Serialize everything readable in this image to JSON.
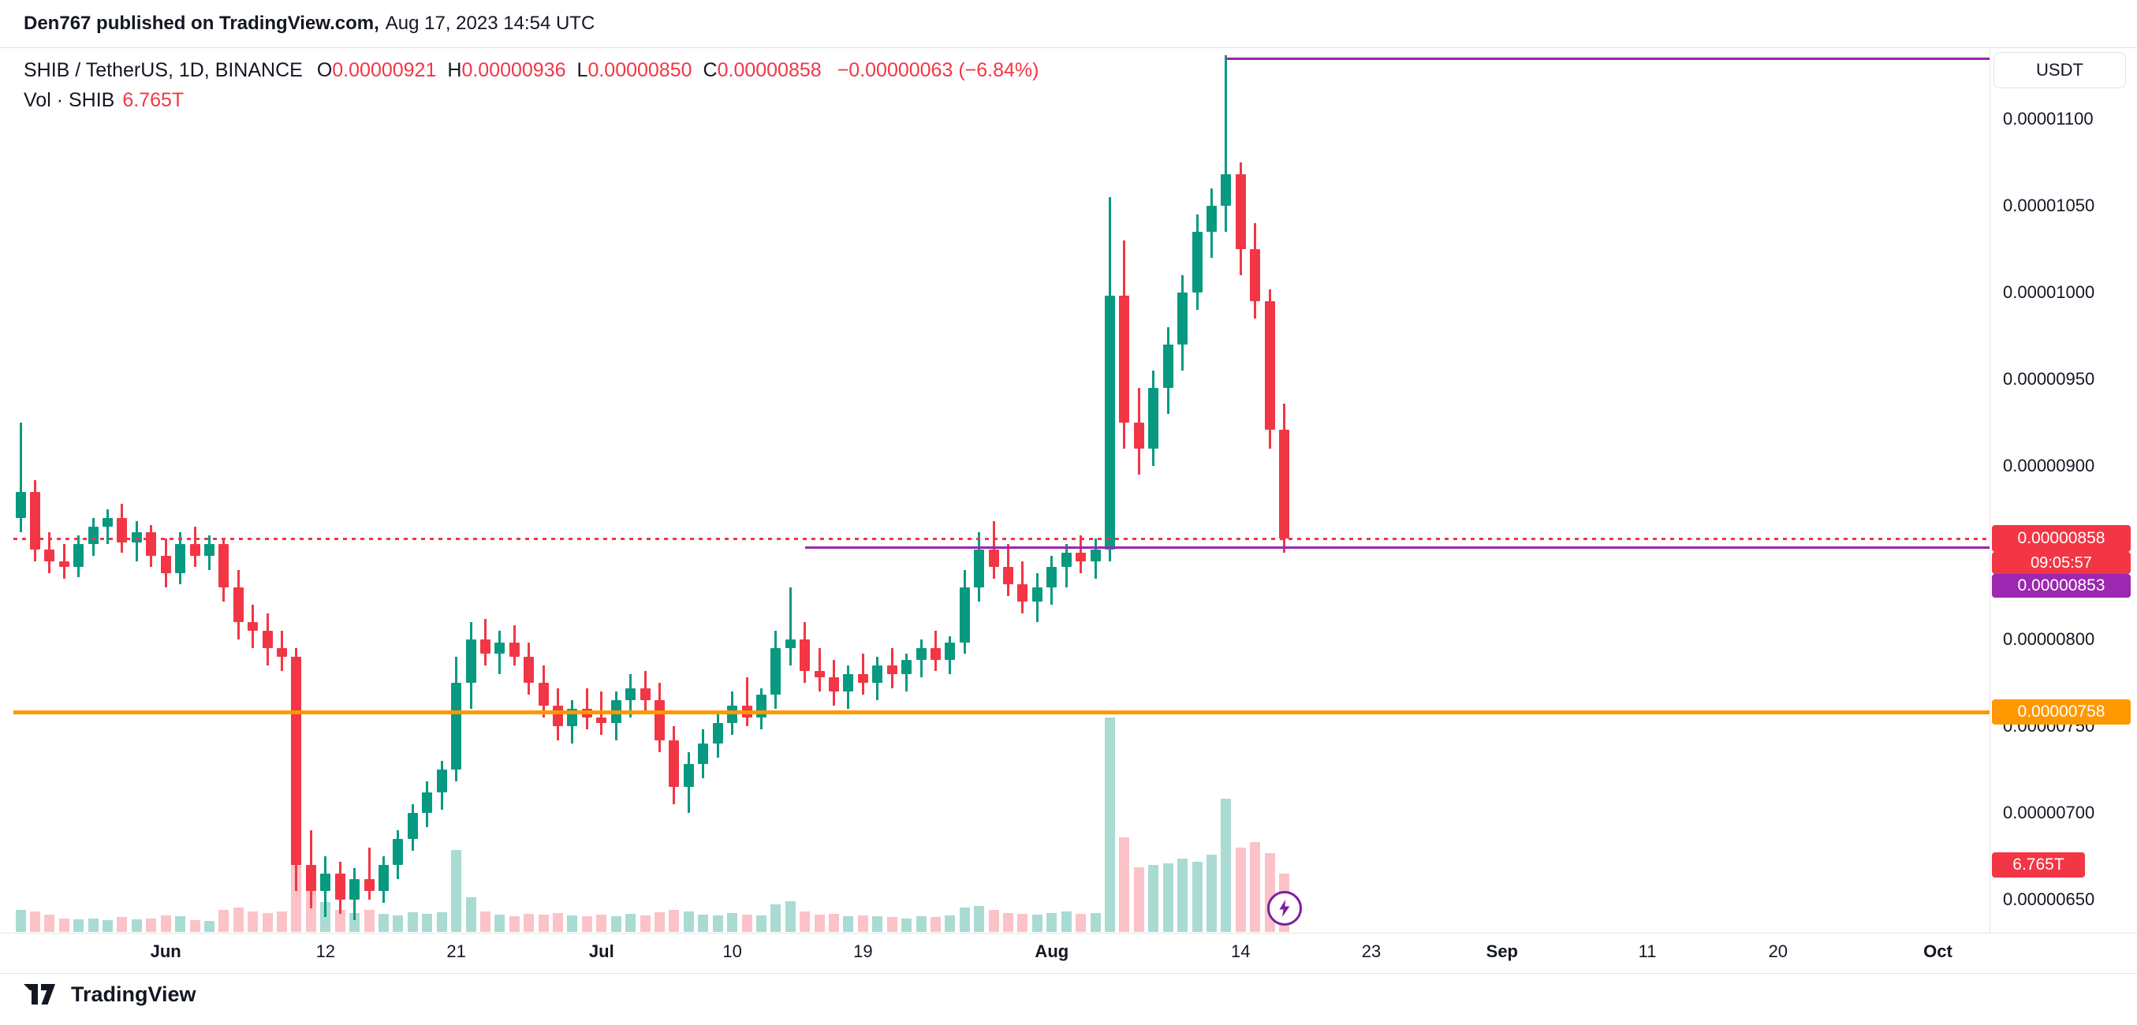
{
  "header": {
    "publisher": "Den767 published on TradingView.com,",
    "date": "Aug 17, 2023 14:54 UTC"
  },
  "legend": {
    "symbol": "SHIB / TetherUS, 1D, BINANCE",
    "ohlc": [
      {
        "k": "O",
        "v": "0.00000921"
      },
      {
        "k": "H",
        "v": "0.00000936"
      },
      {
        "k": "L",
        "v": "0.00000850"
      },
      {
        "k": "C",
        "v": "0.00000858"
      }
    ],
    "change": "−0.00000063 (−6.84%)",
    "volume_label": "Vol · SHIB",
    "volume_value": "6.765T"
  },
  "price_axis": {
    "currency": "USDT",
    "labels": [
      {
        "text": "0.00001100",
        "price_1e8": 11.0
      },
      {
        "text": "0.00001050",
        "price_1e8": 10.5
      },
      {
        "text": "0.00001000",
        "price_1e8": 10.0
      },
      {
        "text": "0.00000950",
        "price_1e8": 9.5
      },
      {
        "text": "0.00000900",
        "price_1e8": 9.0
      },
      {
        "text": "0.00000800",
        "price_1e8": 8.0
      },
      {
        "text": "0.00000750",
        "price_1e8": 7.5
      },
      {
        "text": "0.00000700",
        "price_1e8": 7.0
      },
      {
        "text": "0.00000650",
        "price_1e8": 6.5
      }
    ],
    "badges": {
      "last_price": {
        "text": "0.00000858",
        "bg": "#f23645"
      },
      "countdown": {
        "text": "09:05:57",
        "bg": "#f23645"
      },
      "purple_level": {
        "text": "0.00000853",
        "bg": "#9c27b0"
      },
      "orange_level": {
        "text": "0.00000758",
        "bg": "#ff9800"
      },
      "volume": {
        "text": "6.765T",
        "bg": "#f23645"
      }
    }
  },
  "time_axis": {
    "labels": [
      {
        "label": "Jun",
        "index": 10,
        "month": true
      },
      {
        "label": "12",
        "index": 21,
        "month": false
      },
      {
        "label": "21",
        "index": 30,
        "month": false
      },
      {
        "label": "Jul",
        "index": 40,
        "month": true
      },
      {
        "label": "10",
        "index": 49,
        "month": false
      },
      {
        "label": "19",
        "index": 58,
        "month": false
      },
      {
        "label": "Aug",
        "index": 71,
        "month": true
      },
      {
        "label": "14",
        "index": 84,
        "month": false
      },
      {
        "label": "23",
        "index": 93,
        "month": false
      },
      {
        "label": "Sep",
        "index": 102,
        "month": true
      },
      {
        "label": "11",
        "index": 112,
        "month": false
      },
      {
        "label": "20",
        "index": 121,
        "month": false
      },
      {
        "label": "Oct",
        "index": 132,
        "month": true
      }
    ]
  },
  "footer": {
    "brand": "TradingView"
  },
  "chart_data": {
    "type": "candlestick",
    "title": "SHIB / TetherUS, 1D, BINANCE",
    "price_unit": "USDT, values ×10⁻⁸",
    "volume_unit": "T (trillions SHIB)",
    "y_axis_range_1e8": [
      6.3,
      11.45
    ],
    "grid": false,
    "legend_position": "top-left",
    "last_bar": {
      "open": "0.00000921",
      "high": "0.00000936",
      "low": "0.00000850",
      "close": "0.00000858",
      "change": "−0.00000063 (−6.84%)",
      "volume": "6.765T"
    },
    "colors": {
      "up": "#089981",
      "down": "#f23645",
      "vol_up": "rgba(8,153,129,0.35)",
      "vol_down": "rgba(242,54,69,0.30)"
    },
    "candles_format": [
      "date",
      "open_1e8",
      "high_1e8",
      "low_1e8",
      "close_1e8",
      "volume_T"
    ],
    "candles": [
      [
        "May 22",
        8.7,
        9.25,
        8.62,
        8.85,
        2.6
      ],
      [
        "May 23",
        8.85,
        8.92,
        8.45,
        8.52,
        2.4
      ],
      [
        "May 24",
        8.52,
        8.62,
        8.38,
        8.45,
        2.0
      ],
      [
        "May 25",
        8.45,
        8.55,
        8.35,
        8.42,
        1.6
      ],
      [
        "May 26",
        8.42,
        8.6,
        8.36,
        8.55,
        1.5
      ],
      [
        "May 27",
        8.55,
        8.7,
        8.48,
        8.65,
        1.6
      ],
      [
        "May 28",
        8.65,
        8.75,
        8.55,
        8.7,
        1.4
      ],
      [
        "May 29",
        8.7,
        8.78,
        8.5,
        8.56,
        1.7
      ],
      [
        "May 30",
        8.56,
        8.68,
        8.45,
        8.62,
        1.5
      ],
      [
        "May 31",
        8.62,
        8.66,
        8.42,
        8.48,
        1.6
      ],
      [
        "Jun 1",
        8.48,
        8.58,
        8.3,
        8.38,
        1.9
      ],
      [
        "Jun 2",
        8.38,
        8.62,
        8.32,
        8.55,
        1.8
      ],
      [
        "Jun 3",
        8.55,
        8.65,
        8.42,
        8.48,
        1.4
      ],
      [
        "Jun 4",
        8.48,
        8.6,
        8.4,
        8.55,
        1.3
      ],
      [
        "Jun 5",
        8.55,
        8.58,
        8.22,
        8.3,
        2.6
      ],
      [
        "Jun 6",
        8.3,
        8.4,
        8.0,
        8.1,
        2.8
      ],
      [
        "Jun 7",
        8.1,
        8.2,
        7.95,
        8.05,
        2.4
      ],
      [
        "Jun 8",
        8.05,
        8.15,
        7.85,
        7.95,
        2.2
      ],
      [
        "Jun 9",
        7.95,
        8.05,
        7.82,
        7.9,
        2.4
      ],
      [
        "Jun 10",
        7.9,
        7.95,
        6.55,
        6.7,
        10.0
      ],
      [
        "Jun 11",
        6.7,
        6.9,
        6.45,
        6.55,
        5.5
      ],
      [
        "Jun 12",
        6.55,
        6.75,
        6.4,
        6.65,
        3.5
      ],
      [
        "Jun 13",
        6.65,
        6.72,
        6.42,
        6.5,
        2.6
      ],
      [
        "Jun 14",
        6.5,
        6.68,
        6.38,
        6.62,
        2.2
      ],
      [
        "Jun 15",
        6.62,
        6.8,
        6.5,
        6.55,
        2.6
      ],
      [
        "Jun 16",
        6.55,
        6.75,
        6.48,
        6.7,
        2.1
      ],
      [
        "Jun 17",
        6.7,
        6.9,
        6.62,
        6.85,
        1.9
      ],
      [
        "Jun 18",
        6.85,
        7.05,
        6.78,
        7.0,
        2.3
      ],
      [
        "Jun 19",
        7.0,
        7.18,
        6.92,
        7.12,
        2.1
      ],
      [
        "Jun 20",
        7.12,
        7.3,
        7.02,
        7.25,
        2.3
      ],
      [
        "Jun 21",
        7.25,
        7.9,
        7.18,
        7.75,
        9.5
      ],
      [
        "Jun 22",
        7.75,
        8.1,
        7.6,
        8.0,
        4.0
      ],
      [
        "Jun 23",
        8.0,
        8.12,
        7.85,
        7.92,
        2.4
      ],
      [
        "Jun 24",
        7.92,
        8.05,
        7.8,
        7.98,
        2.0
      ],
      [
        "Jun 25",
        7.98,
        8.08,
        7.85,
        7.9,
        1.8
      ],
      [
        "Jun 26",
        7.9,
        7.98,
        7.68,
        7.75,
        2.1
      ],
      [
        "Jun 27",
        7.75,
        7.85,
        7.55,
        7.62,
        2.0
      ],
      [
        "Jun 28",
        7.62,
        7.72,
        7.42,
        7.5,
        2.2
      ],
      [
        "Jun 29",
        7.5,
        7.65,
        7.4,
        7.6,
        1.9
      ],
      [
        "Jun 30",
        7.6,
        7.72,
        7.48,
        7.55,
        1.8
      ],
      [
        "Jul 1",
        7.55,
        7.7,
        7.45,
        7.52,
        2.0
      ],
      [
        "Jul 2",
        7.52,
        7.7,
        7.42,
        7.65,
        1.8
      ],
      [
        "Jul 3",
        7.65,
        7.8,
        7.55,
        7.72,
        2.1
      ],
      [
        "Jul 4",
        7.72,
        7.82,
        7.58,
        7.65,
        1.9
      ],
      [
        "Jul 5",
        7.65,
        7.75,
        7.35,
        7.42,
        2.3
      ],
      [
        "Jul 6",
        7.42,
        7.5,
        7.05,
        7.15,
        2.6
      ],
      [
        "Jul 7",
        7.15,
        7.35,
        7.0,
        7.28,
        2.4
      ],
      [
        "Jul 8",
        7.28,
        7.48,
        7.2,
        7.4,
        2.0
      ],
      [
        "Jul 9",
        7.4,
        7.58,
        7.32,
        7.52,
        1.9
      ],
      [
        "Jul 10",
        7.52,
        7.7,
        7.45,
        7.62,
        2.2
      ],
      [
        "Jul 11",
        7.62,
        7.78,
        7.5,
        7.55,
        2.0
      ],
      [
        "Jul 12",
        7.55,
        7.72,
        7.48,
        7.68,
        1.9
      ],
      [
        "Jul 13",
        7.68,
        8.05,
        7.6,
        7.95,
        3.2
      ],
      [
        "Jul 14",
        7.95,
        8.3,
        7.85,
        8.0,
        3.6
      ],
      [
        "Jul 15",
        8.0,
        8.1,
        7.75,
        7.82,
        2.4
      ],
      [
        "Jul 16",
        7.82,
        7.95,
        7.7,
        7.78,
        2.0
      ],
      [
        "Jul 17",
        7.78,
        7.88,
        7.62,
        7.7,
        2.1
      ],
      [
        "Jul 18",
        7.7,
        7.85,
        7.6,
        7.8,
        1.8
      ],
      [
        "Jul 19",
        7.8,
        7.92,
        7.68,
        7.75,
        1.9
      ],
      [
        "Jul 20",
        7.75,
        7.9,
        7.65,
        7.85,
        1.8
      ],
      [
        "Jul 21",
        7.85,
        7.95,
        7.72,
        7.8,
        1.7
      ],
      [
        "Jul 22",
        7.8,
        7.92,
        7.7,
        7.88,
        1.6
      ],
      [
        "Jul 23",
        7.88,
        8.0,
        7.78,
        7.95,
        1.8
      ],
      [
        "Jul 24",
        7.95,
        8.05,
        7.82,
        7.88,
        1.7
      ],
      [
        "Jul 25",
        7.88,
        8.02,
        7.8,
        7.98,
        1.9
      ],
      [
        "Jul 26",
        7.98,
        8.4,
        7.92,
        8.3,
        2.8
      ],
      [
        "Jul 27",
        8.3,
        8.62,
        8.22,
        8.52,
        3.0
      ],
      [
        "Jul 28",
        8.52,
        8.68,
        8.35,
        8.42,
        2.6
      ],
      [
        "Jul 29",
        8.42,
        8.55,
        8.25,
        8.32,
        2.2
      ],
      [
        "Jul 30",
        8.32,
        8.45,
        8.15,
        8.22,
        2.1
      ],
      [
        "Jul 31",
        8.22,
        8.38,
        8.1,
        8.3,
        2.0
      ],
      [
        "Aug 1",
        8.3,
        8.48,
        8.2,
        8.42,
        2.2
      ],
      [
        "Aug 2",
        8.42,
        8.55,
        8.3,
        8.5,
        2.4
      ],
      [
        "Aug 3",
        8.5,
        8.6,
        8.38,
        8.45,
        2.1
      ],
      [
        "Aug 4",
        8.45,
        8.58,
        8.35,
        8.52,
        2.2
      ],
      [
        "Aug 5",
        8.52,
        10.55,
        8.45,
        9.98,
        25.0
      ],
      [
        "Aug 6",
        9.98,
        10.3,
        9.1,
        9.25,
        11.0
      ],
      [
        "Aug 7",
        9.25,
        9.45,
        8.95,
        9.1,
        7.5
      ],
      [
        "Aug 8",
        9.1,
        9.55,
        9.0,
        9.45,
        7.8
      ],
      [
        "Aug 9",
        9.45,
        9.8,
        9.3,
        9.7,
        8.0
      ],
      [
        "Aug 10",
        9.7,
        10.1,
        9.55,
        10.0,
        8.5
      ],
      [
        "Aug 11",
        10.0,
        10.45,
        9.9,
        10.35,
        8.2
      ],
      [
        "Aug 12",
        10.35,
        10.6,
        10.2,
        10.5,
        9.0
      ],
      [
        "Aug 13",
        10.5,
        11.37,
        10.35,
        10.68,
        15.5
      ],
      [
        "Aug 14",
        10.68,
        10.75,
        10.1,
        10.25,
        9.8
      ],
      [
        "Aug 15",
        10.25,
        10.4,
        9.85,
        9.95,
        10.5
      ],
      [
        "Aug 16",
        9.95,
        10.02,
        9.1,
        9.21,
        9.2
      ],
      [
        "Aug 17",
        9.21,
        9.36,
        8.5,
        8.58,
        6.765
      ]
    ],
    "overlays": [
      {
        "name": "upper-resistance-line",
        "price_1e8": 11.35,
        "from_index": 83,
        "color": "#9c27b0",
        "style": "solid",
        "width": 3
      },
      {
        "name": "breakout-support-line",
        "price_1e8": 8.53,
        "from_index": 54,
        "color": "#9c27b0",
        "style": "solid",
        "width": 3
      },
      {
        "name": "orange-support-line",
        "price_1e8": 7.58,
        "from_index": null,
        "color": "#ff9800",
        "style": "solid",
        "width": 5
      },
      {
        "name": "last-price-line",
        "price_1e8": 8.58,
        "from_index": null,
        "color": "#f23645",
        "style": "dotted",
        "width": 3
      }
    ]
  }
}
